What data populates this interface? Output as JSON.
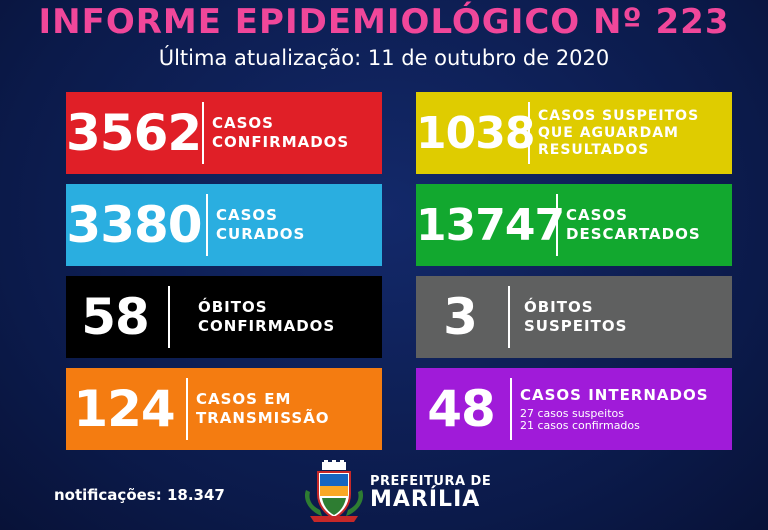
{
  "header": {
    "title": "INFORME EPIDEMIOLÓGICO Nº 223",
    "subtitle": "Última atualização: 11 de outubro de 2020"
  },
  "cards": {
    "confirmados": {
      "value": "3562",
      "line1": "CASOS",
      "line2": "CONFIRMADOS",
      "color": "#e01f27"
    },
    "suspeitos": {
      "value": "1038",
      "line1": "CASOS SUSPEITOS",
      "line2": "QUE AGUARDAM",
      "line3": "RESULTADOS",
      "color": "#dfcc00"
    },
    "curados": {
      "value": "3380",
      "line1": "CASOS",
      "line2": "CURADOS",
      "color": "#2aaee0"
    },
    "descartados": {
      "value": "13747",
      "line1": "CASOS",
      "line2": "DESCARTADOS",
      "color": "#12a82f"
    },
    "obitos": {
      "value": "58",
      "line1": "ÓBITOS",
      "line2": "CONFIRMADOS",
      "color": "#000000"
    },
    "obitos_suspeitos": {
      "value": "3",
      "line1": "ÓBITOS",
      "line2": "SUSPEITOS",
      "color": "#5f6060"
    },
    "transmissao": {
      "value": "124",
      "line1": "CASOS EM",
      "line2": "TRANSMISSÃO",
      "color": "#f47c11"
    },
    "internados": {
      "value": "48",
      "line1": "CASOS INTERNADOS",
      "sub1": "27 casos suspeitos",
      "sub2": "21 casos confirmados",
      "color": "#a01bd9"
    }
  },
  "footer": {
    "notificacoes": "notificações: 18.347",
    "prefeitura_line1": "PREFEITURA DE",
    "prefeitura_line2": "MARÍLIA",
    "logo_icon": "coat-of-arms-icon"
  }
}
